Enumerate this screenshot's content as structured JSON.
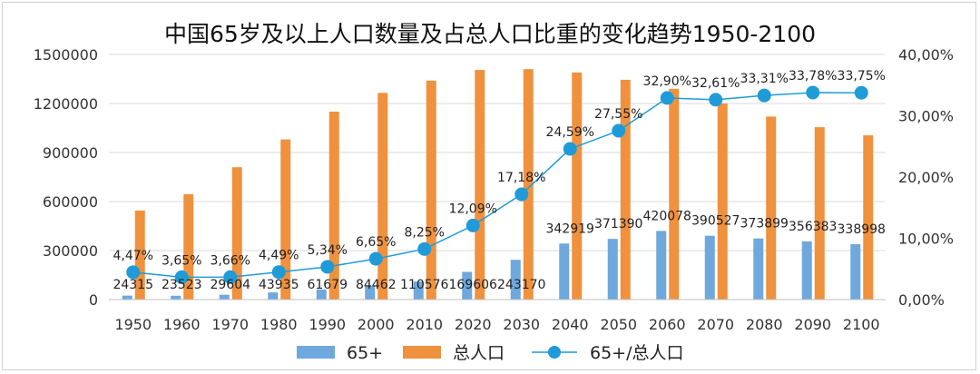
{
  "chart_data": {
    "type": "bar",
    "title": "中国65岁及以上人口数量及占总人口比重的变化趋势1950-2100",
    "categories": [
      "1950",
      "1960",
      "1970",
      "1980",
      "1990",
      "2000",
      "2010",
      "2020",
      "2030",
      "2040",
      "2050",
      "2060",
      "2070",
      "2080",
      "2090",
      "2100"
    ],
    "series": [
      {
        "name": "65+",
        "type": "bar",
        "axis": "left",
        "color": "#6fa8dc",
        "values": [
          24315,
          23523,
          29604,
          43935,
          61679,
          84462,
          110576,
          169606,
          243170,
          342919,
          371390,
          420078,
          390527,
          373899,
          356383,
          338998
        ],
        "labels": [
          "24315",
          "23523",
          "29604",
          "43935",
          "61679",
          "84462",
          "110576",
          "169606",
          "243170",
          "342919",
          "371390",
          "420078",
          "390527",
          "373899",
          "356383",
          "338998"
        ]
      },
      {
        "name": "总人口",
        "type": "bar",
        "axis": "left",
        "color": "#f0913e",
        "values": [
          545000,
          645000,
          810000,
          980000,
          1150000,
          1265000,
          1340000,
          1405000,
          1410000,
          1390000,
          1345000,
          1290000,
          1200000,
          1120000,
          1055000,
          1005000
        ]
      },
      {
        "name": "65+/总人口",
        "type": "line",
        "axis": "right",
        "color": "#1f9bd7",
        "values": [
          4.47,
          3.65,
          3.66,
          4.49,
          5.34,
          6.65,
          8.25,
          12.09,
          17.18,
          24.59,
          27.55,
          32.9,
          32.61,
          33.31,
          33.78,
          33.75
        ],
        "labels": [
          "4,47%",
          "3,65%",
          "3,66%",
          "4,49%",
          "5,34%",
          "6,65%",
          "8,25%",
          "12,09%",
          "17,18%",
          "24,59%",
          "27,55%",
          "32,90%",
          "32,61%",
          "33,31%",
          "33,78%",
          "33,75%"
        ]
      }
    ],
    "y_left": {
      "min": 0,
      "max": 1500000,
      "ticks": [
        "0",
        "300000",
        "600000",
        "900000",
        "1200000",
        "1500000"
      ]
    },
    "y_right": {
      "min": 0,
      "max": 40,
      "ticks": [
        "0,00%",
        "10,00%",
        "20,00%",
        "30,00%",
        "40,00%"
      ]
    },
    "grid": true,
    "legend": "bottom"
  }
}
